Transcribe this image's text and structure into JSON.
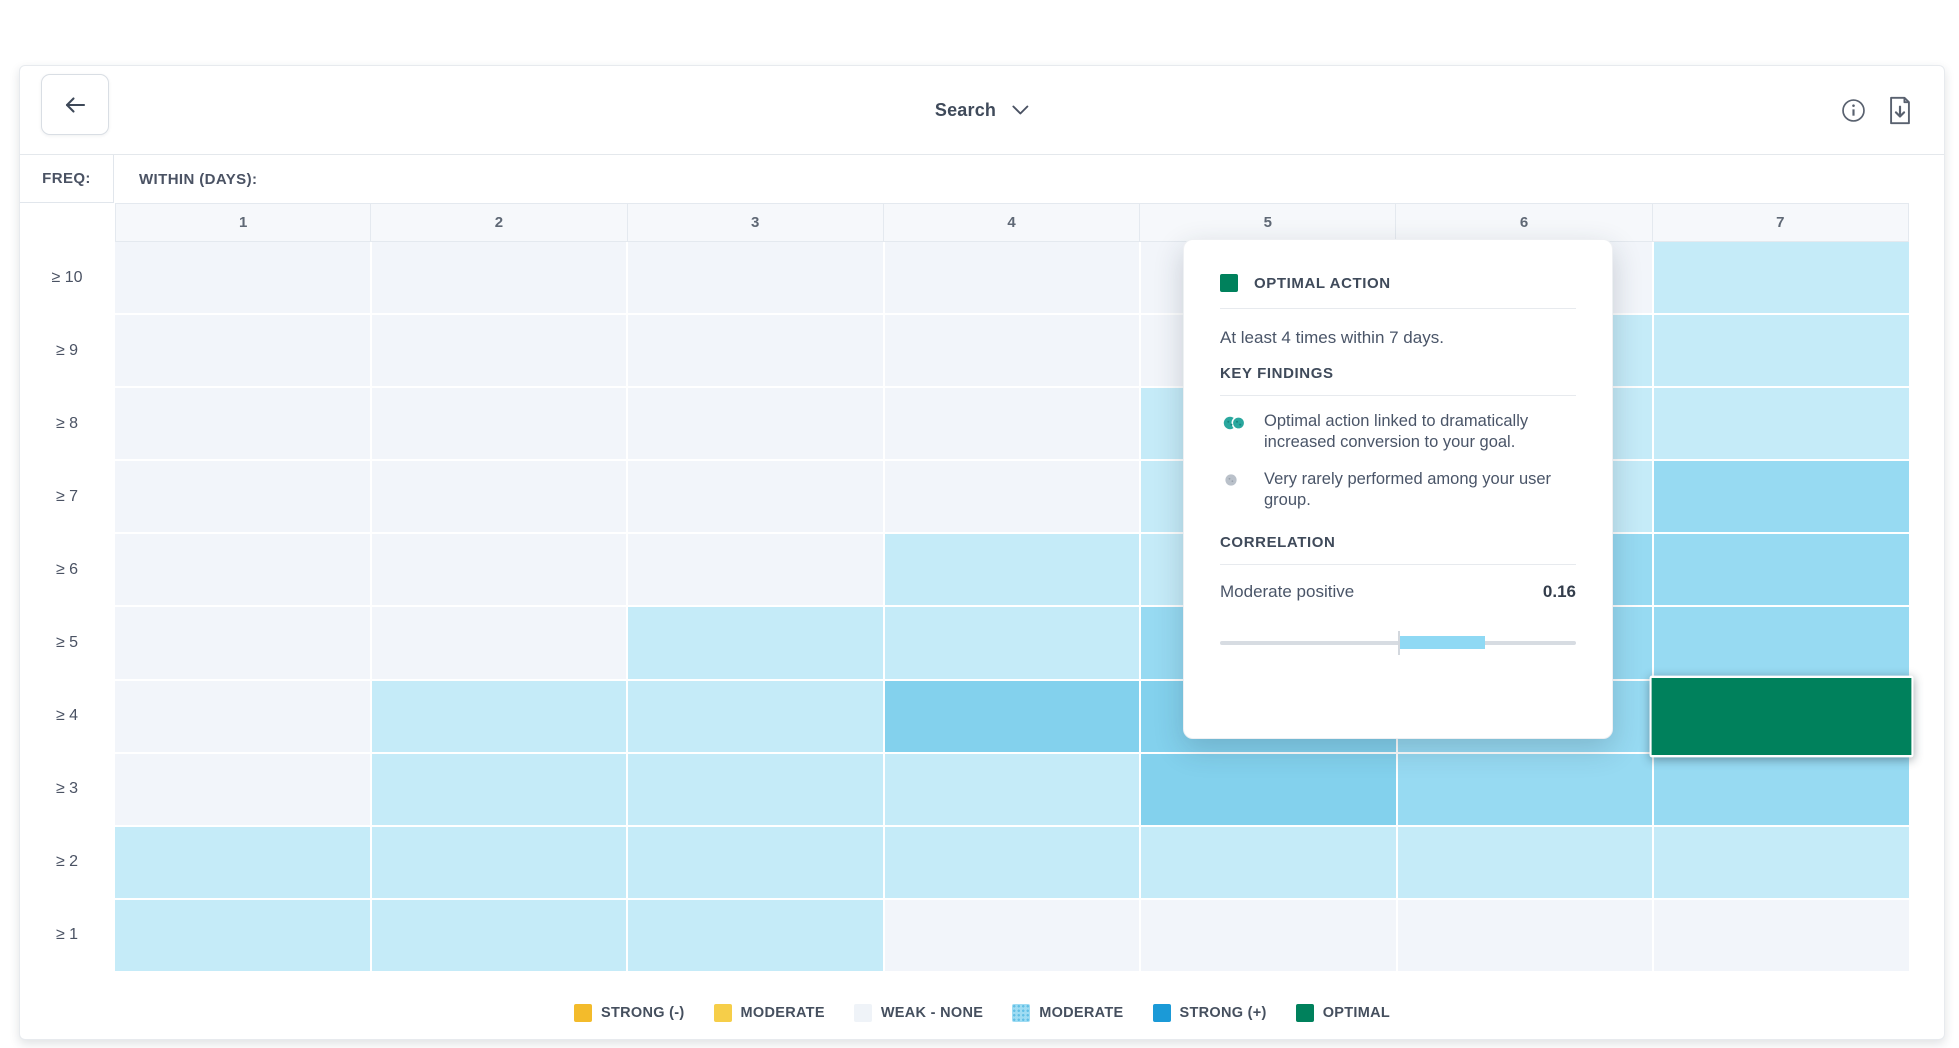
{
  "toolbar": {
    "search_label": "Search"
  },
  "axis": {
    "freq_label": "FREQ:",
    "within_label": "WITHIN (DAYS):"
  },
  "heatmap": {
    "type": "heatmap",
    "columns": [
      "1",
      "2",
      "3",
      "4",
      "5",
      "6",
      "7"
    ],
    "rows": [
      "≥ 10",
      "≥ 9",
      "≥ 8",
      "≥ 7",
      "≥ 6",
      "≥ 5",
      "≥ 4",
      "≥ 3",
      "≥ 2",
      "≥ 1"
    ],
    "levels": [
      [
        0,
        0,
        0,
        0,
        0,
        0,
        1
      ],
      [
        0,
        0,
        0,
        0,
        0,
        1,
        1
      ],
      [
        0,
        0,
        0,
        0,
        1,
        1,
        1
      ],
      [
        0,
        0,
        0,
        0,
        1,
        1,
        2
      ],
      [
        0,
        0,
        0,
        1,
        1,
        2,
        2
      ],
      [
        0,
        0,
        1,
        1,
        2,
        2,
        2
      ],
      [
        0,
        1,
        1,
        3,
        3,
        2,
        4
      ],
      [
        0,
        1,
        1,
        1,
        3,
        2,
        2
      ],
      [
        1,
        1,
        1,
        1,
        1,
        1,
        1
      ],
      [
        1,
        1,
        1,
        0,
        0,
        0,
        0
      ]
    ],
    "level_colors": {
      "0": "#F2F5FA",
      "1": "#C5EBF8",
      "2": "#97DAF2",
      "3": "#83D1ED",
      "4": "#00815C"
    },
    "level_names": {
      "0": "weak-none",
      "1": "moderate-light",
      "2": "moderate",
      "3": "moderate-strong",
      "4": "optimal"
    },
    "optimal_cell": {
      "row": "≥ 4",
      "column": "7"
    }
  },
  "popup": {
    "title": "OPTIMAL ACTION",
    "description": "At least 4 times within 7 days.",
    "key_findings_heading": "KEY FINDINGS",
    "findings": [
      {
        "text": "Optimal action linked to dramatically increased conversion to your goal."
      },
      {
        "text": "Very rarely performed among your user group."
      }
    ],
    "correlation_heading": "CORRELATION",
    "correlation_label": "Moderate positive",
    "correlation_value": "0.16",
    "swatch_color": "#00815C",
    "slider_fill_color": "#8FD9F4"
  },
  "legend": {
    "items": [
      {
        "label": "STRONG (-)",
        "color": "#F3BB2B",
        "textured": false
      },
      {
        "label": "MODERATE",
        "color": "#F6CE49",
        "textured": false
      },
      {
        "label": "WEAK - NONE",
        "color": "#EFF3F8",
        "textured": false
      },
      {
        "label": "MODERATE",
        "color": "#9FDCF3",
        "textured": true
      },
      {
        "label": "STRONG (+)",
        "color": "#1B9AD7",
        "textured": false
      },
      {
        "label": "OPTIMAL",
        "color": "#00815C",
        "textured": false
      }
    ]
  }
}
